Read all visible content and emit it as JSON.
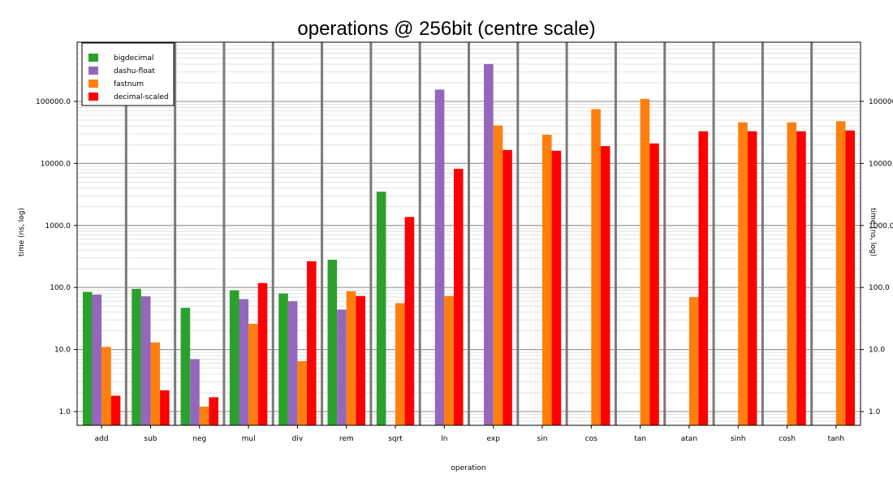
{
  "chart_data": {
    "type": "bar",
    "title": "operations @ 256bit (centre scale)",
    "xlabel": "operation",
    "ylabel": "time (ns, log)",
    "ylabel_right": "time (ns, log)",
    "yscale": "log",
    "ylim": [
      0.6,
      900000
    ],
    "yticks": [
      1,
      10,
      100,
      1000,
      10000,
      100000
    ],
    "ytick_labels": [
      "1.0",
      "10.0",
      "100.0",
      "1000.0",
      "10000.0",
      "100000.0"
    ],
    "legend_position": "top-left",
    "grid": true,
    "categories": [
      "add",
      "sub",
      "neg",
      "mul",
      "div",
      "rem",
      "sqrt",
      "ln",
      "exp",
      "sin",
      "cos",
      "tan",
      "atan",
      "sinh",
      "cosh",
      "tanh"
    ],
    "series": [
      {
        "name": "bigdecimal",
        "color": "#2ca02c",
        "values": [
          85,
          95,
          47,
          90,
          80,
          280,
          3500,
          null,
          null,
          null,
          null,
          null,
          null,
          null,
          null,
          null
        ]
      },
      {
        "name": "dashu-float",
        "color": "#9467bd",
        "values": [
          77,
          72,
          7,
          65,
          60,
          44,
          null,
          155000,
          400000,
          null,
          null,
          null,
          null,
          null,
          null,
          null
        ]
      },
      {
        "name": "fastnum",
        "color": "#ff7f0e",
        "values": [
          11,
          13,
          1.2,
          26,
          6.5,
          87,
          56,
          73,
          41000,
          29000,
          75000,
          110000,
          70,
          46000,
          46000,
          48000
        ]
      },
      {
        "name": "decimal-scaled",
        "color": "#ff0000",
        "values": [
          1.8,
          2.2,
          1.7,
          118,
          265,
          73,
          1370,
          8200,
          16500,
          16000,
          19000,
          21000,
          33000,
          33000,
          33000,
          34000
        ]
      }
    ]
  }
}
